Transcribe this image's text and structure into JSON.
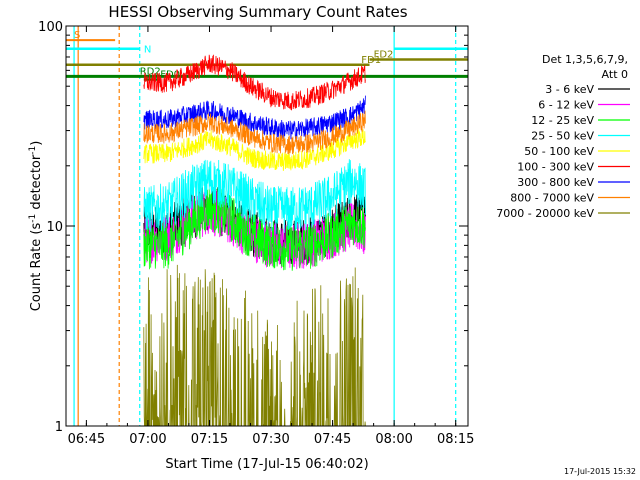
{
  "chart_data": {
    "type": "line",
    "title": "HESSI Observing Summary Count Rates",
    "xlabel": "Start Time (17-Jul-15 06:40:02)",
    "ylabel": "Count Rate (s",
    "ylabel_sup1": "-1",
    "ylabel_mid": " detector",
    "ylabel_sup2": "-1",
    "ylabel_end": ")",
    "y_scale": "log",
    "ylim": [
      1,
      100
    ],
    "xlim": [
      "06:40:02",
      "08:18:00"
    ],
    "x_ticks": [
      "06:45",
      "07:00",
      "07:15",
      "07:30",
      "07:45",
      "08:00",
      "08:15"
    ],
    "y_ticks": [
      "1",
      "10",
      "100"
    ],
    "legend_header": [
      "Det 1,3,5,6,7,9,",
      "Att 0"
    ],
    "legend_placement": "right",
    "timestamp": "17-Jul-2015 15:32",
    "series": [
      {
        "name": "3 - 6 keV",
        "color": "#000000",
        "x": [
          "06:59",
          "07:05",
          "07:10",
          "07:15",
          "07:20",
          "07:25",
          "07:30",
          "07:35",
          "07:40",
          "07:45",
          "07:50",
          "07:53"
        ],
        "y": [
          9.5,
          9.6,
          11,
          12.5,
          11,
          9.2,
          8.5,
          8.2,
          8.5,
          9.5,
          11,
          12
        ]
      },
      {
        "name": "6 - 12 keV",
        "color": "#ff00ff",
        "x": [
          "06:59",
          "07:05",
          "07:10",
          "07:15",
          "07:20",
          "07:25",
          "07:30",
          "07:35",
          "07:40",
          "07:45",
          "07:50",
          "07:53"
        ],
        "y": [
          8.5,
          8.8,
          10.5,
          12,
          10.5,
          8.8,
          8.0,
          7.8,
          8.2,
          9.0,
          10,
          9.0
        ]
      },
      {
        "name": "12 - 25 keV",
        "color": "#00ff00",
        "x": [
          "06:59",
          "07:05",
          "07:10",
          "07:15",
          "07:20",
          "07:25",
          "07:30",
          "07:35",
          "07:40",
          "07:45",
          "07:50",
          "07:53"
        ],
        "y": [
          8.0,
          8.0,
          10,
          12.5,
          11,
          9.0,
          8.0,
          7.8,
          8.0,
          9.0,
          10.5,
          10
        ]
      },
      {
        "name": "25 - 50 keV",
        "color": "#00ffff",
        "x": [
          "06:59",
          "07:05",
          "07:10",
          "07:15",
          "07:20",
          "07:25",
          "07:30",
          "07:35",
          "07:40",
          "07:45",
          "07:50",
          "07:53"
        ],
        "y": [
          12,
          12.5,
          15,
          17,
          15.5,
          13.5,
          12,
          12,
          12.5,
          14,
          17,
          15
        ]
      },
      {
        "name": "50 - 100 keV",
        "color": "#ffff00",
        "x": [
          "06:59",
          "07:05",
          "07:10",
          "07:15",
          "07:20",
          "07:25",
          "07:30",
          "07:35",
          "07:40",
          "07:45",
          "07:50",
          "07:53"
        ],
        "y": [
          23,
          23,
          25,
          27,
          25,
          22,
          21,
          21,
          22,
          24,
          27,
          28
        ]
      },
      {
        "name": "100 - 300 keV",
        "color": "#ff0000",
        "x": [
          "06:59",
          "07:05",
          "07:10",
          "07:15",
          "07:20",
          "07:25",
          "07:30",
          "07:35",
          "07:40",
          "07:45",
          "07:50",
          "07:53"
        ],
        "y": [
          52,
          52,
          57,
          65,
          60,
          50,
          44,
          42,
          44,
          48,
          54,
          58
        ]
      },
      {
        "name": "300 - 800 keV",
        "color": "#0000ff",
        "x": [
          "06:59",
          "07:05",
          "07:10",
          "07:15",
          "07:20",
          "07:25",
          "07:30",
          "07:35",
          "07:40",
          "07:45",
          "07:50",
          "07:53"
        ],
        "y": [
          34,
          34,
          36,
          38,
          36,
          33,
          31,
          30,
          31,
          33,
          36,
          40
        ]
      },
      {
        "name": "800 - 7000 keV",
        "color": "#ff8000",
        "x": [
          "06:59",
          "07:05",
          "07:10",
          "07:15",
          "07:20",
          "07:25",
          "07:30",
          "07:35",
          "07:40",
          "07:45",
          "07:50",
          "07:53"
        ],
        "y": [
          29,
          29,
          31,
          33,
          31,
          28,
          26,
          25.5,
          26,
          28,
          31,
          34
        ]
      },
      {
        "name": "7000 - 20000 keV",
        "color": "#808000",
        "x": [
          "06:59",
          "07:05",
          "07:10",
          "07:15",
          "07:20",
          "07:25",
          "07:30",
          "07:35",
          "07:40",
          "07:45",
          "07:50",
          "07:53"
        ],
        "y": [
          1.6,
          1.8,
          1.9,
          1.8,
          1.6,
          1.3,
          1.1,
          1.2,
          1.4,
          1.6,
          1.9,
          2.2
        ]
      }
    ],
    "annotations": [
      {
        "label": "S",
        "color": "#ff8000"
      },
      {
        "label": "N",
        "color": "#00ffff"
      },
      {
        "label": "FD1",
        "color": "#808000"
      },
      {
        "label": "FD2",
        "color": "#808000"
      },
      {
        "label": "RD2",
        "color": "#008000"
      },
      {
        "label": "FD0",
        "color": "#008000"
      }
    ]
  }
}
